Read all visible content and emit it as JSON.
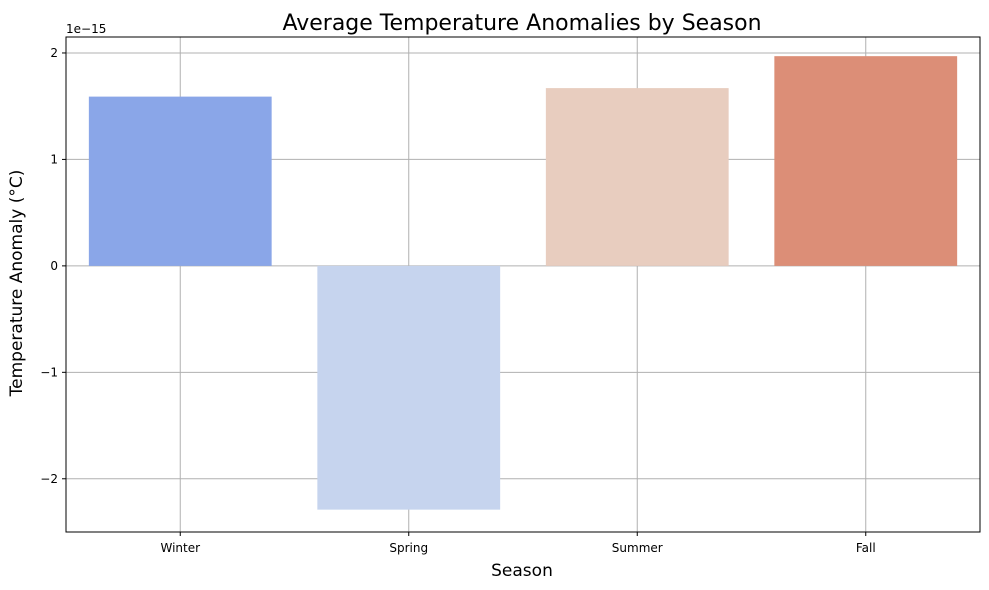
{
  "chart_data": {
    "type": "bar",
    "title": "Average Temperature Anomalies by Season",
    "xlabel": "Season",
    "ylabel": "Temperature Anomaly (°C)",
    "y_offset_label": "1e−15",
    "y_scale_factor": 1e-15,
    "categories": [
      "Winter",
      "Spring",
      "Summer",
      "Fall"
    ],
    "values": [
      1.59e-15,
      -2.29e-15,
      1.67e-15,
      1.97e-15
    ],
    "colors": [
      "#8aa6e8",
      "#c6d4ee",
      "#e8cdbf",
      "#dc8e77"
    ],
    "ylim": [
      -2.5e-15,
      2.15e-15
    ],
    "yticks": [
      -2,
      -1,
      0,
      1,
      2
    ],
    "ytick_labels": [
      "−2",
      "−1",
      "0",
      "1",
      "2"
    ],
    "grid": true,
    "legend": "none"
  }
}
